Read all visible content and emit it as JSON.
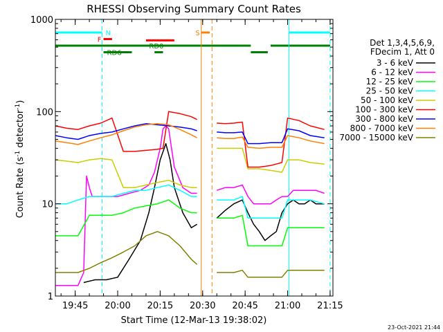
{
  "chart_data": {
    "type": "line",
    "title": "RHESSI Observing Summary Count Rates",
    "xlabel": "Start Time (12-Mar-13 19:38:02)",
    "ylabel": "Count Rate (s",
    "ylabel_sup1": "-1",
    "ylabel_mid": " detector",
    "ylabel_sup2": "-1",
    "ylabel_end": ")",
    "yscale": "log",
    "ylim": [
      1,
      1000
    ],
    "xlim_minutes": [
      0,
      98
    ],
    "y_ticks": [
      "1",
      "10",
      "100",
      "1000"
    ],
    "x_ticks": [
      {
        "label": "19:45",
        "minute": 7
      },
      {
        "label": "20:00",
        "minute": 22
      },
      {
        "label": "20:15",
        "minute": 37
      },
      {
        "label": "20:30",
        "minute": 52
      },
      {
        "label": "20:45",
        "minute": 67
      },
      {
        "label": "21:00",
        "minute": 82
      },
      {
        "label": "21:15",
        "minute": 97
      }
    ],
    "legend_header": [
      "Det 1,3,4,5,6,9,",
      "FDecim 1, Att 0"
    ],
    "legend_position": "right",
    "gaps_minutes": [
      [
        50.5,
        56.5
      ]
    ],
    "series": [
      {
        "name": "3 - 6 keV",
        "color": "#000000",
        "x": [
          10,
          14,
          18,
          22,
          26,
          30,
          33,
          35,
          37,
          39,
          40.5,
          42,
          45,
          48,
          50,
          57,
          60,
          63,
          66,
          68,
          70,
          72,
          74,
          76,
          78,
          80,
          82,
          84,
          86,
          88,
          90,
          92,
          94,
          95
        ],
        "y": [
          1.4,
          1.5,
          1.5,
          1.6,
          2.5,
          4,
          8,
          15,
          30,
          45,
          30,
          15,
          8,
          5.5,
          6,
          7,
          8.5,
          10,
          11,
          8,
          6,
          5,
          4,
          4.5,
          5,
          8,
          10,
          11,
          10,
          10,
          11,
          10,
          10,
          10
        ]
      },
      {
        "name": "6 - 12 keV",
        "color": "#ff00ff",
        "x": [
          0,
          4,
          8,
          10,
          11,
          12,
          13,
          15,
          18,
          22,
          26,
          30,
          33,
          35,
          37,
          38,
          39,
          40,
          41,
          42,
          45,
          48,
          50,
          57,
          60,
          63,
          66,
          68,
          70,
          72,
          76,
          78,
          80,
          82,
          84,
          88,
          92,
          95
        ],
        "y": [
          1.3,
          1.3,
          1.3,
          1.8,
          20,
          15,
          12,
          12,
          12,
          12,
          13,
          14,
          16,
          22,
          40,
          65,
          70,
          65,
          40,
          25,
          15,
          13,
          13,
          14,
          15,
          15,
          16,
          12,
          10,
          10,
          10,
          11,
          12,
          12,
          14,
          14,
          14,
          13
        ]
      },
      {
        "name": "12 - 25 keV",
        "color": "#00ff00",
        "x": [
          0,
          4,
          8,
          12,
          16,
          20,
          24,
          28,
          32,
          36,
          40,
          44,
          48,
          50,
          57,
          60,
          63,
          66,
          68,
          72,
          76,
          80,
          82,
          86,
          90,
          95
        ],
        "y": [
          4.5,
          4.5,
          4.5,
          7.5,
          7.5,
          7.5,
          8,
          9,
          9.5,
          10,
          11,
          9,
          8,
          8,
          7,
          7,
          7,
          7.5,
          3.5,
          3.5,
          3.5,
          3.5,
          5.5,
          5.5,
          5.5,
          5.5
        ]
      },
      {
        "name": "25 - 50 keV",
        "color": "#00ffff",
        "x": [
          0,
          4,
          8,
          12,
          16,
          20,
          24,
          28,
          32,
          36,
          40,
          44,
          48,
          50,
          57,
          60,
          63,
          66,
          68,
          72,
          76,
          80,
          82,
          86,
          90,
          95
        ],
        "y": [
          10,
          10,
          11,
          12,
          12,
          12,
          13,
          14,
          14,
          15,
          16,
          14,
          12,
          12,
          11,
          11,
          11,
          12,
          7,
          7,
          7,
          7,
          11,
          11,
          11,
          10
        ]
      },
      {
        "name": "50 - 100 keV",
        "color": "#cccc00",
        "x": [
          0,
          4,
          8,
          12,
          16,
          20,
          24,
          28,
          32,
          36,
          40,
          44,
          48,
          50,
          57,
          60,
          63,
          66,
          68,
          72,
          76,
          80,
          82,
          86,
          90,
          95
        ],
        "y": [
          30,
          29,
          28,
          30,
          31,
          30,
          15,
          15,
          16,
          17,
          18,
          16,
          15,
          15,
          40,
          40,
          40,
          40,
          24,
          24,
          23,
          22,
          30,
          30,
          28,
          27
        ]
      },
      {
        "name": "100 - 300 keV",
        "color": "#ff0000",
        "x": [
          0,
          4,
          8,
          12,
          16,
          20,
          24,
          28,
          32,
          36,
          38,
          40,
          44,
          48,
          50,
          57,
          60,
          63,
          66,
          68,
          72,
          76,
          80,
          82,
          86,
          90,
          95
        ],
        "y": [
          70,
          66,
          64,
          70,
          75,
          85,
          37,
          37,
          38,
          39,
          40,
          100,
          95,
          88,
          82,
          75,
          74,
          75,
          77,
          25,
          25,
          26,
          28,
          85,
          80,
          70,
          64
        ]
      },
      {
        "name": "300 - 800 keV",
        "color": "#0000ff",
        "x": [
          0,
          4,
          8,
          12,
          16,
          20,
          24,
          28,
          32,
          36,
          40,
          44,
          48,
          50,
          57,
          60,
          63,
          66,
          68,
          72,
          76,
          80,
          82,
          86,
          90,
          95
        ],
        "y": [
          55,
          52,
          50,
          55,
          58,
          60,
          65,
          70,
          74,
          72,
          70,
          68,
          65,
          62,
          60,
          59,
          59,
          60,
          45,
          45,
          46,
          46,
          65,
          62,
          55,
          52
        ]
      },
      {
        "name": "800 - 7000 keV",
        "color": "#ff8000",
        "x": [
          0,
          4,
          8,
          12,
          16,
          20,
          24,
          28,
          32,
          36,
          40,
          44,
          48,
          50,
          57,
          60,
          63,
          66,
          68,
          72,
          76,
          80,
          82,
          86,
          90,
          95
        ],
        "y": [
          48,
          46,
          44,
          48,
          52,
          56,
          62,
          68,
          72,
          74,
          72,
          64,
          56,
          52,
          52,
          51,
          51,
          53,
          41,
          40,
          41,
          41,
          55,
          52,
          48,
          45
        ]
      },
      {
        "name": "7000 - 15000 keV",
        "color": "#808000",
        "x": [
          0,
          4,
          8,
          12,
          16,
          20,
          24,
          28,
          32,
          36,
          40,
          44,
          48,
          50,
          57,
          60,
          63,
          66,
          68,
          72,
          76,
          80,
          82,
          86,
          90,
          95
        ],
        "y": [
          1.8,
          1.8,
          1.8,
          2.0,
          2.3,
          2.6,
          3.0,
          3.5,
          4.5,
          5.0,
          4.5,
          3.5,
          2.5,
          2.2,
          1.8,
          1.8,
          1.8,
          1.9,
          1.6,
          1.6,
          1.6,
          1.6,
          1.9,
          1.9,
          1.9,
          1.9
        ]
      }
    ],
    "flag_bars": [
      {
        "label": "N",
        "color": "#00ffff",
        "row": 0,
        "segments": [
          [
            0,
            16.5
          ],
          [
            82.5,
            97
          ]
        ]
      },
      {
        "label": "S",
        "color": "#ff8000",
        "row": 0,
        "segments": [
          [
            51.5,
            54.5
          ]
        ]
      },
      {
        "label": "F",
        "color": "#ff0000",
        "row": 1,
        "segments": [
          [
            17,
            20
          ]
        ]
      },
      {
        "label": "",
        "color": "#ff0000",
        "row": 1.2,
        "segments": [
          [
            32,
            42
          ]
        ]
      },
      {
        "label": "RD0",
        "color": "#008000",
        "row": 2,
        "segments": [
          [
            0,
            69
          ],
          [
            76,
            97
          ]
        ]
      },
      {
        "label": "RD6",
        "color": "#008000",
        "row": 3,
        "segments": [
          [
            17,
            27
          ],
          [
            35,
            38
          ],
          [
            69,
            75
          ]
        ]
      }
    ],
    "vertical_markers": [
      {
        "color": "#00ffff",
        "style": "solid",
        "minute": 0
      },
      {
        "color": "#00ffff",
        "style": "dashed",
        "minute": 16.5
      },
      {
        "color": "#ff8000",
        "style": "solid",
        "minute": 51.5
      },
      {
        "color": "#ff8000",
        "style": "dashed",
        "minute": 55.3
      },
      {
        "color": "#00ffff",
        "style": "solid",
        "minute": 82.5
      },
      {
        "color": "#00ffff",
        "style": "dashed",
        "minute": 97
      }
    ],
    "footer_date": "23-Oct-2021 21:44"
  }
}
